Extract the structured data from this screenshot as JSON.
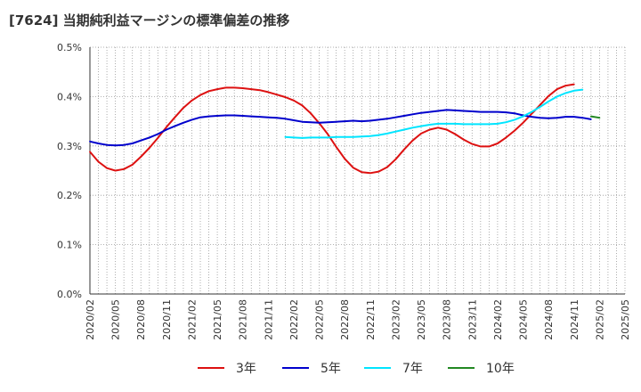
{
  "chart_data": {
    "type": "line",
    "title": "[7624]  当期純利益マージンの標準偏差の推移",
    "xlabel": "",
    "ylabel": "",
    "ylim": [
      0,
      0.5
    ],
    "y_ticks": [
      "0.0%",
      "0.1%",
      "0.2%",
      "0.3%",
      "0.4%",
      "0.5%"
    ],
    "x_ticks": [
      "2020/02",
      "2020/05",
      "2020/08",
      "2020/11",
      "2021/02",
      "2021/05",
      "2021/08",
      "2021/11",
      "2022/02",
      "2022/05",
      "2022/08",
      "2022/11",
      "2023/02",
      "2023/05",
      "2023/08",
      "2023/11",
      "2024/02",
      "2024/05",
      "2024/08",
      "2024/11",
      "2025/02",
      "2025/05"
    ],
    "x_start": "2020/02",
    "grid": true,
    "legend_position": "bottom",
    "series": [
      {
        "name": "3年",
        "color": "#dd1111",
        "start": "2020/02",
        "values": [
          0.288,
          0.268,
          0.255,
          0.25,
          0.253,
          0.262,
          0.278,
          0.296,
          0.316,
          0.338,
          0.358,
          0.377,
          0.392,
          0.403,
          0.411,
          0.415,
          0.418,
          0.418,
          0.417,
          0.415,
          0.413,
          0.409,
          0.404,
          0.399,
          0.392,
          0.382,
          0.366,
          0.346,
          0.324,
          0.298,
          0.274,
          0.256,
          0.247,
          0.245,
          0.248,
          0.257,
          0.273,
          0.293,
          0.311,
          0.325,
          0.333,
          0.337,
          0.333,
          0.324,
          0.313,
          0.304,
          0.299,
          0.299,
          0.305,
          0.317,
          0.331,
          0.347,
          0.365,
          0.383,
          0.401,
          0.415,
          0.422,
          0.425
        ]
      },
      {
        "name": "5年",
        "color": "#0000cc",
        "start": "2020/02",
        "values": [
          0.309,
          0.305,
          0.302,
          0.301,
          0.302,
          0.305,
          0.311,
          0.317,
          0.324,
          0.333,
          0.34,
          0.347,
          0.353,
          0.358,
          0.36,
          0.361,
          0.362,
          0.362,
          0.361,
          0.36,
          0.359,
          0.358,
          0.357,
          0.355,
          0.352,
          0.349,
          0.348,
          0.347,
          0.348,
          0.349,
          0.35,
          0.351,
          0.35,
          0.351,
          0.353,
          0.355,
          0.358,
          0.361,
          0.364,
          0.367,
          0.369,
          0.371,
          0.373,
          0.372,
          0.371,
          0.37,
          0.369,
          0.369,
          0.369,
          0.368,
          0.366,
          0.362,
          0.359,
          0.357,
          0.356,
          0.357,
          0.359,
          0.359,
          0.357,
          0.354
        ]
      },
      {
        "name": "7年",
        "color": "#00e5ff",
        "start": "2022/01",
        "values": [
          0.318,
          0.317,
          0.316,
          0.317,
          0.317,
          0.317,
          0.318,
          0.318,
          0.318,
          0.319,
          0.32,
          0.322,
          0.325,
          0.329,
          0.333,
          0.337,
          0.34,
          0.343,
          0.345,
          0.345,
          0.345,
          0.344,
          0.344,
          0.344,
          0.344,
          0.345,
          0.348,
          0.353,
          0.36,
          0.369,
          0.379,
          0.39,
          0.4,
          0.407,
          0.412,
          0.414
        ]
      },
      {
        "name": "10年",
        "color": "#228822",
        "start": "2025/01",
        "values": [
          0.36,
          0.357
        ]
      }
    ]
  }
}
